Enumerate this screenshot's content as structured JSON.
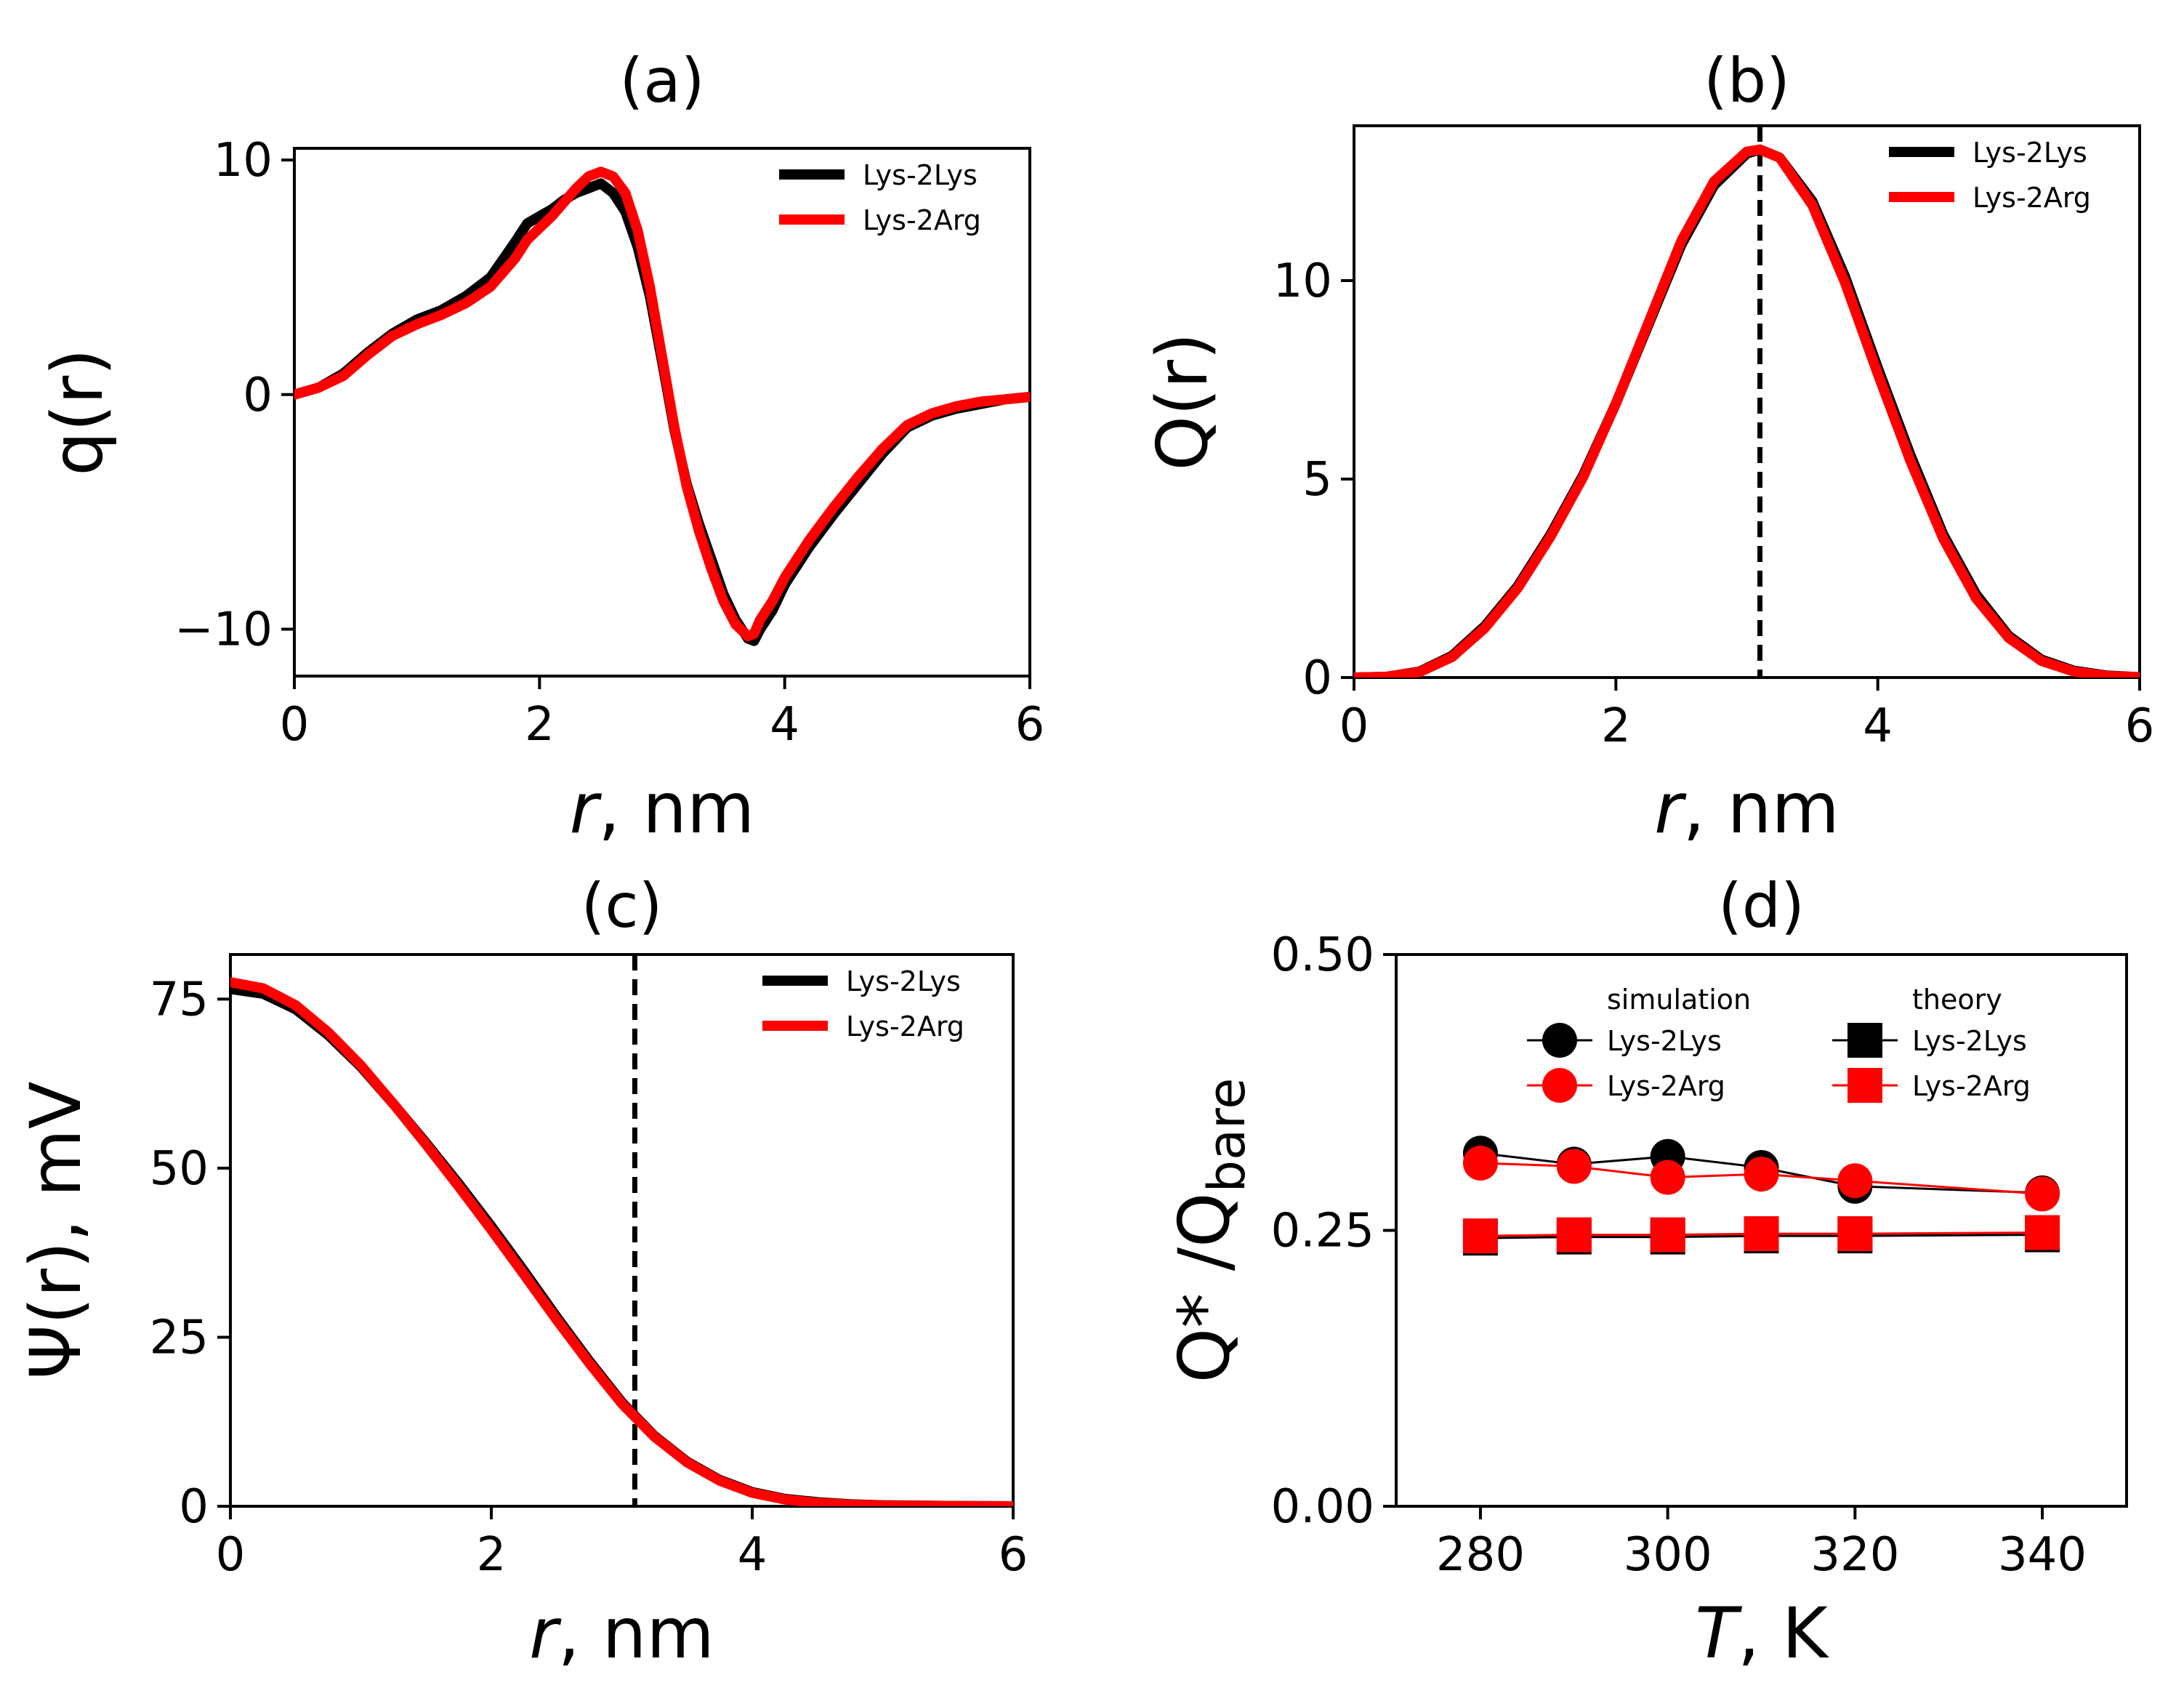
{
  "figure": {
    "colors": {
      "lys2lys": "#000000",
      "lys2arg": "#ff0000",
      "vline": "#000000"
    }
  },
  "chart_data": [
    {
      "id": "a",
      "type": "line",
      "title": "(a)",
      "xlabel_var": "r",
      "xlabel_unit": ", nm",
      "ylabel": "q(r)",
      "xlim": [
        0,
        6
      ],
      "ylim": [
        -12,
        10.5
      ],
      "xticks": [
        0,
        2,
        4,
        6
      ],
      "xtick_labels": [
        "0",
        "2",
        "4",
        "6"
      ],
      "yticks": [
        -10,
        0,
        10
      ],
      "ytick_labels": [
        "−10",
        "0",
        "10"
      ],
      "legend": {
        "position": "top-right",
        "entries": [
          "Lys-2Lys",
          "Lys-2Arg"
        ]
      },
      "series": [
        {
          "name": "Lys-2Lys",
          "color": "#000000",
          "x": [
            0,
            0.2,
            0.4,
            0.6,
            0.8,
            1.0,
            1.2,
            1.4,
            1.6,
            1.8,
            1.9,
            2.0,
            2.1,
            2.2,
            2.3,
            2.4,
            2.5,
            2.6,
            2.7,
            2.8,
            2.9,
            3.0,
            3.1,
            3.2,
            3.3,
            3.4,
            3.5,
            3.6,
            3.7,
            3.75,
            3.8,
            3.9,
            4.0,
            4.2,
            4.4,
            4.6,
            4.8,
            5.0,
            5.2,
            5.4,
            5.6,
            5.8,
            6.0
          ],
          "y": [
            0,
            0.3,
            0.9,
            1.8,
            2.6,
            3.2,
            3.6,
            4.2,
            5.0,
            6.5,
            7.3,
            7.6,
            7.9,
            8.3,
            8.6,
            8.8,
            9.0,
            8.6,
            7.8,
            6.3,
            4.2,
            1.4,
            -1.5,
            -3.8,
            -5.5,
            -7.0,
            -8.5,
            -9.6,
            -10.4,
            -10.5,
            -10.0,
            -9.2,
            -8.1,
            -6.5,
            -5.1,
            -3.8,
            -2.5,
            -1.4,
            -0.9,
            -0.6,
            -0.4,
            -0.2,
            -0.1
          ]
        },
        {
          "name": "Lys-2Arg",
          "color": "#ff0000",
          "x": [
            0,
            0.2,
            0.4,
            0.6,
            0.8,
            1.0,
            1.2,
            1.4,
            1.6,
            1.8,
            1.9,
            2.0,
            2.1,
            2.2,
            2.3,
            2.4,
            2.5,
            2.6,
            2.7,
            2.8,
            2.9,
            3.0,
            3.1,
            3.2,
            3.3,
            3.4,
            3.5,
            3.6,
            3.7,
            3.75,
            3.8,
            3.9,
            4.0,
            4.2,
            4.4,
            4.6,
            4.8,
            5.0,
            5.2,
            5.4,
            5.6,
            5.8,
            6.0
          ],
          "y": [
            0,
            0.3,
            0.8,
            1.7,
            2.5,
            3.0,
            3.4,
            3.9,
            4.6,
            5.8,
            6.6,
            7.1,
            7.6,
            8.2,
            8.8,
            9.3,
            9.5,
            9.3,
            8.6,
            7.0,
            4.6,
            1.6,
            -1.4,
            -3.9,
            -5.8,
            -7.4,
            -8.8,
            -9.8,
            -10.3,
            -10.2,
            -9.6,
            -8.8,
            -7.8,
            -6.2,
            -4.8,
            -3.5,
            -2.3,
            -1.3,
            -0.8,
            -0.5,
            -0.3,
            -0.2,
            -0.1
          ]
        }
      ]
    },
    {
      "id": "b",
      "type": "line",
      "title": "(b)",
      "xlabel_var": "r",
      "xlabel_unit": ", nm",
      "ylabel": "Q(r)",
      "xlim": [
        0,
        6
      ],
      "ylim": [
        0,
        13.9
      ],
      "xticks": [
        0,
        2,
        4,
        6
      ],
      "xtick_labels": [
        "0",
        "2",
        "4",
        "6"
      ],
      "yticks": [
        0,
        5,
        10
      ],
      "ytick_labels": [
        "0",
        "5",
        "10"
      ],
      "vline": 3.1,
      "legend": {
        "position": "top-right",
        "entries": [
          "Lys-2Lys",
          "Lys-2Arg"
        ]
      },
      "series": [
        {
          "name": "Lys-2Lys",
          "color": "#000000",
          "x": [
            0,
            0.25,
            0.5,
            0.75,
            1.0,
            1.25,
            1.5,
            1.75,
            2.0,
            2.25,
            2.5,
            2.75,
            3.0,
            3.1,
            3.25,
            3.5,
            3.75,
            4.0,
            4.25,
            4.5,
            4.75,
            5.0,
            5.25,
            5.5,
            5.75,
            6.0
          ],
          "y": [
            0,
            0.02,
            0.15,
            0.55,
            1.3,
            2.3,
            3.6,
            5.1,
            6.9,
            8.9,
            10.9,
            12.4,
            13.2,
            13.3,
            13.1,
            12.0,
            10.1,
            7.8,
            5.6,
            3.6,
            2.1,
            1.05,
            0.45,
            0.17,
            0.05,
            0.01
          ]
        },
        {
          "name": "Lys-2Arg",
          "color": "#ff0000",
          "x": [
            0,
            0.25,
            0.5,
            0.75,
            1.0,
            1.25,
            1.5,
            1.75,
            2.0,
            2.25,
            2.5,
            2.75,
            3.0,
            3.1,
            3.25,
            3.5,
            3.75,
            4.0,
            4.25,
            4.5,
            4.75,
            5.0,
            5.25,
            5.5,
            5.75,
            6.0
          ],
          "y": [
            0,
            0.02,
            0.14,
            0.52,
            1.25,
            2.25,
            3.55,
            5.05,
            6.9,
            8.95,
            11.0,
            12.5,
            13.25,
            13.3,
            13.1,
            11.9,
            9.95,
            7.65,
            5.45,
            3.5,
            2.0,
            1.0,
            0.42,
            0.15,
            0.04,
            0.01
          ]
        }
      ]
    },
    {
      "id": "c",
      "type": "line",
      "title": "(c)",
      "xlabel_var": "r",
      "xlabel_unit": ", nm",
      "ylabel": "Ψ(r), mV",
      "xlim": [
        0,
        6
      ],
      "ylim": [
        0,
        81.6
      ],
      "xticks": [
        0,
        2,
        4,
        6
      ],
      "xtick_labels": [
        "0",
        "2",
        "4",
        "6"
      ],
      "yticks": [
        0,
        25,
        50,
        75
      ],
      "ytick_labels": [
        "0",
        "25",
        "50",
        "75"
      ],
      "vline": 3.1,
      "legend": {
        "position": "top-right",
        "entries": [
          "Lys-2Lys",
          "Lys-2Arg"
        ]
      },
      "series": [
        {
          "name": "Lys-2Lys",
          "color": "#000000",
          "x": [
            0,
            0.25,
            0.5,
            0.75,
            1.0,
            1.25,
            1.5,
            1.75,
            2.0,
            2.25,
            2.5,
            2.75,
            3.0,
            3.25,
            3.5,
            3.75,
            4.0,
            4.25,
            4.5,
            4.75,
            5.0,
            5.5,
            6.0
          ],
          "y": [
            76.5,
            75.8,
            73.5,
            69.7,
            65.0,
            59.5,
            53.7,
            47.7,
            41.4,
            34.8,
            28.0,
            21.5,
            15.4,
            10.4,
            6.6,
            3.9,
            2.1,
            1.1,
            0.6,
            0.3,
            0.15,
            0.05,
            0.0
          ]
        },
        {
          "name": "Lys-2Arg",
          "color": "#ff0000",
          "x": [
            0,
            0.25,
            0.5,
            0.75,
            1.0,
            1.25,
            1.5,
            1.75,
            2.0,
            2.25,
            2.5,
            2.75,
            3.0,
            3.25,
            3.5,
            3.75,
            4.0,
            4.25,
            4.5,
            4.75,
            5.0,
            5.5,
            6.0
          ],
          "y": [
            77.5,
            76.6,
            74.1,
            70.1,
            65.2,
            59.5,
            53.5,
            47.3,
            40.9,
            34.3,
            27.6,
            21.2,
            15.2,
            10.3,
            6.5,
            3.8,
            2.0,
            1.0,
            0.5,
            0.25,
            0.12,
            0.04,
            0.0
          ]
        }
      ]
    },
    {
      "id": "d",
      "type": "scatter",
      "title": "(d)",
      "xlabel_var": "T",
      "xlabel_unit": ", K",
      "ylabel": "Q* /Q",
      "ylabel_sub": "bare",
      "xlim": [
        271,
        349
      ],
      "ylim": [
        0,
        0.5
      ],
      "xticks": [
        280,
        300,
        320,
        340
      ],
      "xtick_labels": [
        "280",
        "300",
        "320",
        "340"
      ],
      "yticks": [
        0,
        0.25,
        0.5
      ],
      "ytick_labels": [
        "0.00",
        "0.25",
        "0.50"
      ],
      "legend": {
        "position": "top",
        "columns": [
          {
            "heading": "simulation",
            "entries": [
              "Lys-2Lys",
              "Lys-2Arg"
            ]
          },
          {
            "heading": "theory",
            "entries": [
              "Lys-2Lys",
              "Lys-2Arg"
            ]
          }
        ]
      },
      "series": [
        {
          "name": "Lys-2Lys",
          "group": "simulation",
          "marker": "circle",
          "color": "#000000",
          "x": [
            280,
            290,
            300,
            310,
            320,
            340
          ],
          "y": [
            0.32,
            0.31,
            0.317,
            0.307,
            0.29,
            0.284
          ]
        },
        {
          "name": "Lys-2Arg",
          "group": "simulation",
          "marker": "circle",
          "color": "#ff0000",
          "x": [
            280,
            290,
            300,
            310,
            320,
            340
          ],
          "y": [
            0.311,
            0.308,
            0.298,
            0.301,
            0.295,
            0.283
          ]
        },
        {
          "name": "Lys-2Lys",
          "group": "theory",
          "marker": "square",
          "color": "#000000",
          "x": [
            280,
            290,
            300,
            310,
            320,
            340
          ],
          "y": [
            0.243,
            0.244,
            0.244,
            0.245,
            0.245,
            0.246
          ]
        },
        {
          "name": "Lys-2Arg",
          "group": "theory",
          "marker": "square",
          "color": "#ff0000",
          "x": [
            280,
            290,
            300,
            310,
            320,
            340
          ],
          "y": [
            0.245,
            0.246,
            0.246,
            0.247,
            0.247,
            0.248
          ]
        }
      ]
    }
  ]
}
